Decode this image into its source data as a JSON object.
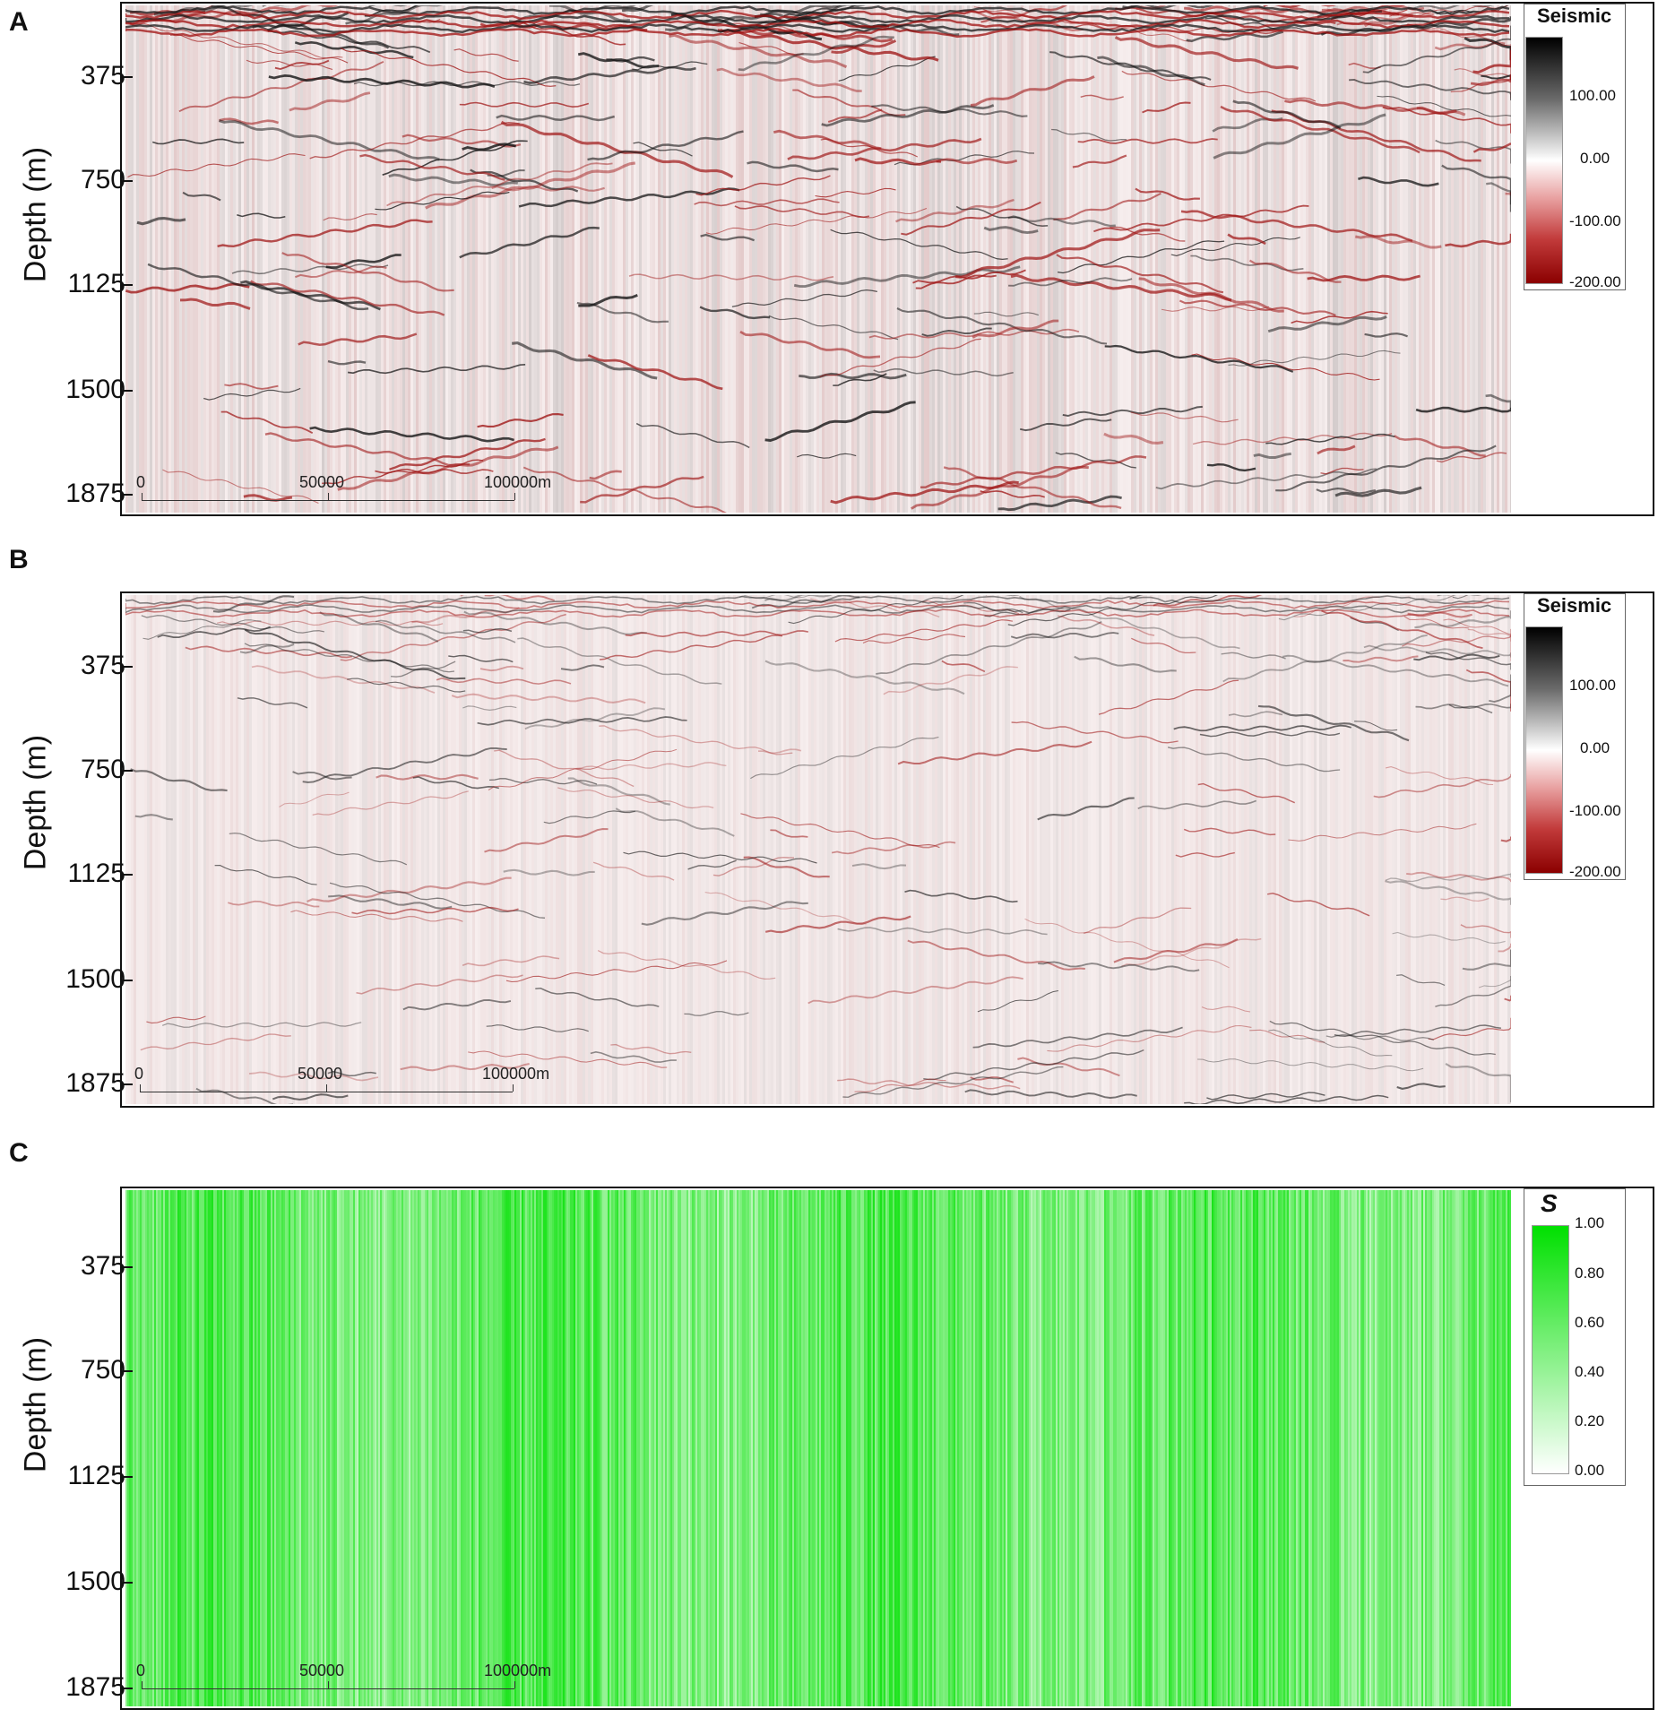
{
  "chart_data": [
    {
      "panel": "A",
      "type": "heatmap",
      "ylabel": "Depth (m)",
      "y_ticks": [
        "375",
        "750",
        "1125",
        "1500",
        "1875"
      ],
      "y_tick_values": [
        375,
        750,
        1125,
        1500,
        1875
      ],
      "ylim": [
        0,
        1875
      ],
      "y_inverted": true,
      "legend": {
        "title": "Seismic",
        "ticks": [
          "100.00",
          "0.00",
          "-100.00",
          "-200.00"
        ],
        "range": [
          -200,
          200
        ],
        "colors": [
          "#000000",
          "#ffffff",
          "#8b0000"
        ]
      },
      "scale_bar": {
        "labels": [
          "0",
          "50000",
          "100000m"
        ]
      },
      "noise_level": "high"
    },
    {
      "panel": "B",
      "type": "heatmap",
      "ylabel": "Depth (m)",
      "y_ticks": [
        "375",
        "750",
        "1125",
        "1500",
        "1875"
      ],
      "y_tick_values": [
        375,
        750,
        1125,
        1500,
        1875
      ],
      "ylim": [
        0,
        1875
      ],
      "y_inverted": true,
      "legend": {
        "title": "Seismic",
        "ticks": [
          "100.00",
          "0.00",
          "-100.00",
          "-200.00"
        ],
        "range": [
          -200,
          200
        ],
        "colors": [
          "#000000",
          "#ffffff",
          "#8b0000"
        ]
      },
      "scale_bar": {
        "labels": [
          "0",
          "50000",
          "100000m"
        ]
      },
      "noise_level": "low"
    },
    {
      "panel": "C",
      "type": "heatmap",
      "ylabel": "Depth (m)",
      "y_ticks": [
        "375",
        "750",
        "1125",
        "1500",
        "1875"
      ],
      "y_tick_values": [
        375,
        750,
        1125,
        1500,
        1875
      ],
      "ylim": [
        0,
        1875
      ],
      "y_inverted": true,
      "legend": {
        "title": "S",
        "ticks": [
          "1.00",
          "0.80",
          "0.60",
          "0.40",
          "0.20",
          "0.00"
        ],
        "range": [
          0,
          1
        ],
        "colors": [
          "#00e000",
          "#ffffff"
        ]
      },
      "scale_bar": {
        "labels": [
          "0",
          "50000",
          "100000m"
        ]
      }
    }
  ]
}
